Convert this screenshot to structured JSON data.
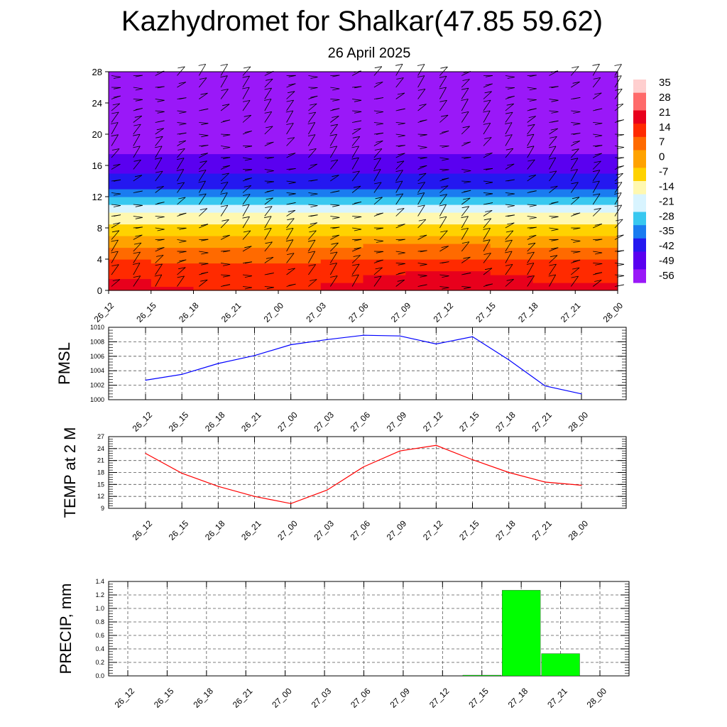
{
  "header": {
    "title": "Kazhydromet for Shalkar(47.85 59.62)",
    "subtitle": "26 April 2025"
  },
  "colors": {
    "pmsl_line": "#0000ff",
    "temp_line": "#ff0000",
    "precip_bar": "#00ff00",
    "palette": [
      "#ffcfcf",
      "#ff6a6a",
      "#e8001c",
      "#ff2a00",
      "#ff6a00",
      "#ffa200",
      "#ffd200",
      "#fff8b0",
      "#d8f4ff",
      "#38c8f0",
      "#1a7cf0",
      "#2418f0",
      "#5a00f0",
      "#9a18f8"
    ]
  },
  "time_labels": [
    "26_12",
    "26_15",
    "26_18",
    "26_21",
    "27_00",
    "27_03",
    "27_06",
    "27_09",
    "27_12",
    "27_15",
    "27_18",
    "27_21",
    "28_00"
  ],
  "chart_data": [
    {
      "type": "heatmap",
      "title": "",
      "x": [
        "26_12",
        "26_15",
        "26_18",
        "26_21",
        "27_00",
        "27_03",
        "27_06",
        "27_09",
        "27_12",
        "27_15",
        "27_18",
        "27_21",
        "28_00"
      ],
      "yticks": [
        0,
        4,
        8,
        12,
        16,
        20,
        24,
        28
      ],
      "ylim": [
        0,
        28
      ],
      "value_note": "temperature by height (km) with wind barbs",
      "colorbar": {
        "labels": [
          "35",
          "28",
          "21",
          "14",
          "7",
          "0",
          "-7",
          "-14",
          "-21",
          "-28",
          "-35",
          "-42",
          "-49",
          "-56"
        ],
        "range": [
          -60,
          38
        ]
      },
      "profile": [
        {
          "h": 0,
          "t": 20
        },
        {
          "h": 2,
          "t": 17
        },
        {
          "h": 4,
          "t": 10
        },
        {
          "h": 6,
          "t": 2
        },
        {
          "h": 8,
          "t": -8
        },
        {
          "h": 10,
          "t": -18
        },
        {
          "h": 12,
          "t": -30
        },
        {
          "h": 13,
          "t": -40
        },
        {
          "h": 16,
          "t": -48
        },
        {
          "h": 18,
          "t": -55
        },
        {
          "h": 20,
          "t": -60
        },
        {
          "h": 22,
          "t": -56
        },
        {
          "h": 24,
          "t": -55
        },
        {
          "h": 26,
          "t": -58
        },
        {
          "h": 28,
          "t": -60
        }
      ],
      "surface_temp_offset": [
        0,
        -2,
        -3,
        -4,
        -5,
        -4,
        0,
        2,
        3,
        1,
        -1,
        -2,
        -2
      ],
      "grid": false
    },
    {
      "type": "line",
      "ylabel": "PMSL",
      "categories": [
        "26_12",
        "26_15",
        "26_18",
        "26_21",
        "27_00",
        "27_03",
        "27_06",
        "27_09",
        "27_12",
        "27_15",
        "27_18",
        "27_21",
        "28_00"
      ],
      "values": [
        1002.7,
        1003.5,
        1005.0,
        1006.1,
        1007.6,
        1008.3,
        1008.9,
        1008.8,
        1007.7,
        1008.7,
        1005.5,
        1001.9,
        1000.8
      ],
      "ylim": [
        1000,
        1010
      ],
      "yticks": [
        1000,
        1002,
        1004,
        1006,
        1008,
        1010
      ],
      "grid": true
    },
    {
      "type": "line",
      "ylabel": "TEMP at 2 M",
      "categories": [
        "26_12",
        "26_15",
        "26_18",
        "26_21",
        "27_00",
        "27_03",
        "27_06",
        "27_09",
        "27_12",
        "27_15",
        "27_18",
        "27_21",
        "28_00"
      ],
      "values": [
        22.8,
        17.8,
        14.5,
        12.0,
        10.2,
        13.6,
        19.4,
        23.4,
        24.8,
        21.2,
        18.0,
        15.6,
        14.8
      ],
      "ylim": [
        9,
        27
      ],
      "yticks": [
        9,
        12,
        15,
        18,
        21,
        24,
        27
      ],
      "grid": true
    },
    {
      "type": "bar",
      "ylabel": "PRECIP, mm",
      "categories": [
        "26_12",
        "26_15",
        "26_18",
        "26_21",
        "27_00",
        "27_03",
        "27_06",
        "27_09",
        "27_12",
        "27_15",
        "27_18",
        "27_21",
        "28_00"
      ],
      "values": [
        0,
        0,
        0,
        0,
        0,
        0,
        0,
        0,
        0,
        0.01,
        1.27,
        0.33,
        0
      ],
      "ylim": [
        0,
        1.4
      ],
      "yticks": [
        0.0,
        0.2,
        0.4,
        0.6,
        0.8,
        1.0,
        1.2,
        1.4
      ],
      "ytick_labels": [
        "0.0",
        "0.2",
        "0.4",
        "0.6",
        "0.8",
        "1.0",
        "1.2",
        "1.4"
      ],
      "grid": true
    }
  ]
}
